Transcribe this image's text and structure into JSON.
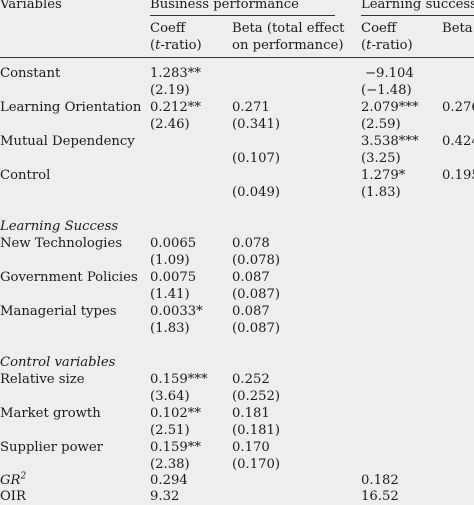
{
  "header": {
    "variables": "Variables",
    "business_performance": "Business performance",
    "learning_success": "Learning success",
    "bp_coeff": "Coeff",
    "bp_tratio_open": "(",
    "bp_tratio_t": "t",
    "bp_tratio_rest": "-ratio)",
    "bp_beta_line1": "Beta (total effect",
    "bp_beta_line2": "on performance)",
    "ls_coeff": "Coeff",
    "ls_tratio_open": "(",
    "ls_tratio_t": "t",
    "ls_tratio_rest": "-ratio)",
    "ls_beta": "Beta"
  },
  "rows": [
    {
      "label": "Constant",
      "bp_coeff": "1.283**",
      "bp_t": "(2.19)",
      "bp_beta": "",
      "bp_beta2": "",
      "ls_coeff": "−9.104",
      "ls_t": "(−1.48)",
      "ls_beta": ""
    },
    {
      "label": "Learning Orientation",
      "bp_coeff": "0.212**",
      "bp_t": "(2.46)",
      "bp_beta": "0.271",
      "bp_beta2": "(0.341)",
      "ls_coeff": "2.079***",
      "ls_t": "(2.59)",
      "ls_beta": "0.276"
    },
    {
      "label": "Mutual Dependency",
      "bp_coeff": "",
      "bp_t": "",
      "bp_beta": "",
      "bp_beta2": "(0.107)",
      "ls_coeff": "3.538***",
      "ls_t": "(3.25)",
      "ls_beta": "0.424"
    },
    {
      "label": "Control",
      "bp_coeff": "",
      "bp_t": "",
      "bp_beta": "",
      "bp_beta2": "(0.049)",
      "ls_coeff": "1.279*",
      "ls_t": "(1.83)",
      "ls_beta": "0.195"
    }
  ],
  "section_learning": "Learning Success",
  "learning_rows": [
    {
      "label": "New Technologies",
      "bp_coeff": "0.0065",
      "bp_t": "(1.09)",
      "bp_beta": "0.078",
      "bp_beta2": "(0.078)"
    },
    {
      "label": "Government Policies",
      "bp_coeff": "0.0075",
      "bp_t": "(1.41)",
      "bp_beta": "0.087",
      "bp_beta2": "(0.087)"
    },
    {
      "label": "Managerial types",
      "bp_coeff": "0.0033*",
      "bp_t": "(1.83)",
      "bp_beta": "0.087",
      "bp_beta2": "(0.087)"
    }
  ],
  "section_control": "Control variables",
  "control_rows": [
    {
      "label": "Relative size",
      "bp_coeff": "0.159***",
      "bp_t": "(3.64)",
      "bp_beta": "0.252",
      "bp_beta2": "(0.252)"
    },
    {
      "label": "Market growth",
      "bp_coeff": "0.102**",
      "bp_t": "(2.51)",
      "bp_beta": "0.181",
      "bp_beta2": "(0.181)"
    },
    {
      "label": "Supplier power",
      "bp_coeff": "0.159**",
      "bp_t": "(2.38)",
      "bp_beta": "0.170",
      "bp_beta2": "(0.170)"
    }
  ],
  "footer": {
    "gr_label": "GR",
    "gr_sup": "2",
    "gr_bp": "0.294",
    "gr_ls": "0.182",
    "oir_label": "OIR",
    "oir_bp": "9.32",
    "oir_ls": "16.52"
  }
}
